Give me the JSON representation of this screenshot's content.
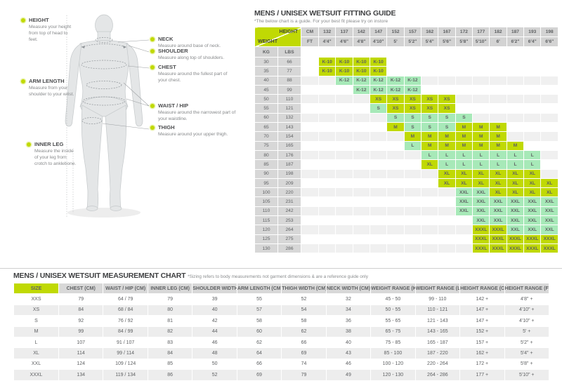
{
  "colors": {
    "accent_green": "#c0d904",
    "mint_green": "#a7e9b8",
    "header_gray": "#d3d3d3"
  },
  "diagram": {
    "annotations_left": [
      {
        "label": "HEIGHT",
        "text": "Measure your height from top of head to feet."
      },
      {
        "label": "ARM LENGTH",
        "text": "Measure from your shoulder to your wrist."
      },
      {
        "label": "INNER LEG",
        "text": "Measure the inside of your leg from crotch to anklebone."
      }
    ],
    "annotations_right": [
      {
        "label": "NECK",
        "text": "Measure around base of neck."
      },
      {
        "label": "SHOULDER",
        "text": "Measure along top of shoulders."
      },
      {
        "label": "CHEST",
        "text": "Measure around the fullest part of your chest."
      },
      {
        "label": "WAIST / HIP",
        "text": "Measure around the narrowest part of your waistline."
      },
      {
        "label": "THIGH",
        "text": "Measure around your upper thigh."
      }
    ]
  },
  "fitting_guide": {
    "title": "MENS / UNISEX WETSUIT FITTING GUIDE",
    "subtitle": "*The below chart is a guide. For your best fit please try on instore",
    "corner": {
      "height_label": "HEIGHT",
      "weight_label": "WEIGHT"
    },
    "units": {
      "cm": "CM",
      "ft": "FT",
      "kg": "KG",
      "lbs": "LBS"
    },
    "heights_cm": [
      "132",
      "137",
      "142",
      "147",
      "152",
      "157",
      "162",
      "167",
      "172",
      "177",
      "182",
      "187",
      "193",
      "198"
    ],
    "heights_ft": [
      "4'4\"",
      "4'6\"",
      "4'8\"",
      "4'10\"",
      "5'",
      "5'2\"",
      "5'4\"",
      "5'6\"",
      "5'8\"",
      "5'10\"",
      "6'",
      "6'2\"",
      "6'4\"",
      "6'6\""
    ],
    "rows": [
      {
        "kg": "30",
        "lbs": "66",
        "cells": [
          {
            "col": 0,
            "span": 4,
            "label": "K-10",
            "shade": "bright"
          }
        ]
      },
      {
        "kg": "35",
        "lbs": "77",
        "cells": [
          {
            "col": 0,
            "span": 4,
            "label": "K-10",
            "shade": "bright"
          }
        ]
      },
      {
        "kg": "40",
        "lbs": "88",
        "cells": [
          {
            "col": 1,
            "span": 5,
            "label": "K-12",
            "shade": "mint"
          }
        ]
      },
      {
        "kg": "45",
        "lbs": "99",
        "cells": [
          {
            "col": 2,
            "span": 4,
            "label": "K-12",
            "shade": "mint"
          }
        ]
      },
      {
        "kg": "50",
        "lbs": "110",
        "cells": [
          {
            "col": 3,
            "span": 5,
            "label": "XS",
            "shade": "bright"
          }
        ]
      },
      {
        "kg": "55",
        "lbs": "121",
        "cells": [
          {
            "col": 3,
            "span": 1,
            "label": "S",
            "shade": "mint"
          },
          {
            "col": 4,
            "span": 4,
            "label": "XS",
            "shade": "bright"
          }
        ]
      },
      {
        "kg": "60",
        "lbs": "132",
        "cells": [
          {
            "col": 4,
            "span": 5,
            "label": "S",
            "shade": "mint"
          }
        ]
      },
      {
        "kg": "65",
        "lbs": "143",
        "cells": [
          {
            "col": 4,
            "span": 1,
            "label": "M",
            "shade": "bright"
          },
          {
            "col": 5,
            "span": 3,
            "label": "S",
            "shade": "mint"
          },
          {
            "col": 8,
            "span": 3,
            "label": "M",
            "shade": "bright"
          }
        ]
      },
      {
        "kg": "70",
        "lbs": "154",
        "cells": [
          {
            "col": 5,
            "span": 6,
            "label": "M",
            "shade": "bright"
          }
        ]
      },
      {
        "kg": "75",
        "lbs": "165",
        "cells": [
          {
            "col": 5,
            "span": 1,
            "label": "L",
            "shade": "mint"
          },
          {
            "col": 6,
            "span": 6,
            "label": "M",
            "shade": "bright"
          }
        ]
      },
      {
        "kg": "80",
        "lbs": "176",
        "cells": [
          {
            "col": 6,
            "span": 7,
            "label": "L",
            "shade": "mint"
          }
        ]
      },
      {
        "kg": "85",
        "lbs": "187",
        "cells": [
          {
            "col": 6,
            "span": 1,
            "label": "XL",
            "shade": "bright"
          },
          {
            "col": 7,
            "span": 6,
            "label": "L",
            "shade": "mint"
          }
        ]
      },
      {
        "kg": "90",
        "lbs": "198",
        "cells": [
          {
            "col": 7,
            "span": 6,
            "label": "XL",
            "shade": "bright"
          }
        ]
      },
      {
        "kg": "95",
        "lbs": "209",
        "cells": [
          {
            "col": 7,
            "span": 7,
            "label": "XL",
            "shade": "bright"
          }
        ]
      },
      {
        "kg": "100",
        "lbs": "220",
        "cells": [
          {
            "col": 8,
            "span": 2,
            "label": "XXL",
            "shade": "mint"
          },
          {
            "col": 10,
            "span": 4,
            "label": "XL",
            "shade": "bright"
          }
        ]
      },
      {
        "kg": "105",
        "lbs": "231",
        "cells": [
          {
            "col": 8,
            "span": 6,
            "label": "XXL",
            "shade": "mint"
          }
        ]
      },
      {
        "kg": "110",
        "lbs": "242",
        "cells": [
          {
            "col": 8,
            "span": 6,
            "label": "XXL",
            "shade": "mint"
          }
        ]
      },
      {
        "kg": "115",
        "lbs": "253",
        "cells": [
          {
            "col": 9,
            "span": 5,
            "label": "XXL",
            "shade": "mint"
          }
        ]
      },
      {
        "kg": "120",
        "lbs": "264",
        "cells": [
          {
            "col": 9,
            "span": 2,
            "label": "XXXL",
            "shade": "bright"
          },
          {
            "col": 11,
            "span": 3,
            "label": "XXL",
            "shade": "mint"
          }
        ]
      },
      {
        "kg": "125",
        "lbs": "275",
        "cells": [
          {
            "col": 9,
            "span": 5,
            "label": "XXXL",
            "shade": "bright"
          }
        ]
      },
      {
        "kg": "130",
        "lbs": "286",
        "cells": [
          {
            "col": 9,
            "span": 5,
            "label": "XXXL",
            "shade": "bright"
          }
        ]
      }
    ]
  },
  "measurement_chart": {
    "title": "MENS / UNISEX WETSUIT MEASUREMENT CHART",
    "note": "*Sizing refers to body measurements not garment dimensions & are a reference guide only",
    "headers": [
      "SIZE",
      "CHEST (CM)",
      "WAIST / HIP (CM)",
      "INNER LEG (CM)",
      "SHOULDER WIDTH (CM)",
      "ARM LENGTH (CM)",
      "THIGH WIDTH (CM)",
      "NECK WIDTH (CM)",
      "WEIGHT RANGE (KG)",
      "WEIGHT RANGE (LBS)",
      "HEIGHT RANGE (CM)",
      "HEIGHT RANGE (FT)"
    ],
    "rows": [
      [
        "XXS",
        "79",
        "64 / 79",
        "79",
        "39",
        "55",
        "52",
        "32",
        "45 - 50",
        "99 - 110",
        "142 +",
        "4'8\" +"
      ],
      [
        "XS",
        "84",
        "68 / 84",
        "80",
        "40",
        "57",
        "54",
        "34",
        "50 - 55",
        "110 - 121",
        "147 +",
        "4'10\" +"
      ],
      [
        "S",
        "92",
        "76 / 92",
        "81",
        "42",
        "58",
        "58",
        "36",
        "55 - 65",
        "121 - 143",
        "147 +",
        "4'10\" +"
      ],
      [
        "M",
        "99",
        "84 / 99",
        "82",
        "44",
        "60",
        "62",
        "38",
        "65 - 75",
        "143 - 165",
        "152 +",
        "5' +"
      ],
      [
        "L",
        "107",
        "91 / 107",
        "83",
        "46",
        "62",
        "66",
        "40",
        "75 - 85",
        "165 - 187",
        "157 +",
        "5'2\" +"
      ],
      [
        "XL",
        "114",
        "99 / 114",
        "84",
        "48",
        "64",
        "69",
        "43",
        "85 - 100",
        "187 - 220",
        "162 +",
        "5'4\" +"
      ],
      [
        "XXL",
        "124",
        "109 / 124",
        "85",
        "50",
        "66",
        "74",
        "46",
        "100 - 120",
        "220 - 264",
        "172 +",
        "5'8\" +"
      ],
      [
        "XXXL",
        "134",
        "119 / 134",
        "86",
        "52",
        "69",
        "79",
        "49",
        "120 - 130",
        "264 - 286",
        "177 +",
        "5'10\" +"
      ]
    ]
  }
}
